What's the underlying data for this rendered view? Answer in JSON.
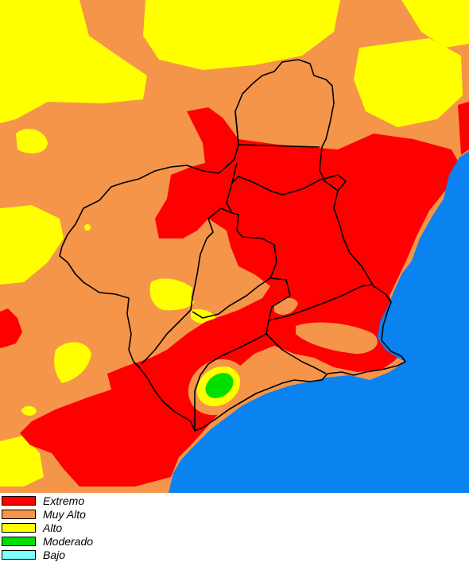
{
  "map": {
    "colors": {
      "extremo": "#FF0000",
      "muy_alto": "#F5954A",
      "alto": "#FFFF00",
      "moderado": "#00E000",
      "bajo": "#80FFFF",
      "sea": "#0A82F0",
      "border": "#000000"
    }
  },
  "legend": {
    "items": [
      {
        "label": "Extremo",
        "color": "#FF0000"
      },
      {
        "label": "Muy Alto",
        "color": "#F5954A"
      },
      {
        "label": "Alto",
        "color": "#FFFF00"
      },
      {
        "label": "Moderado",
        "color": "#00E000"
      },
      {
        "label": "Bajo",
        "color": "#80FFFF"
      }
    ]
  }
}
